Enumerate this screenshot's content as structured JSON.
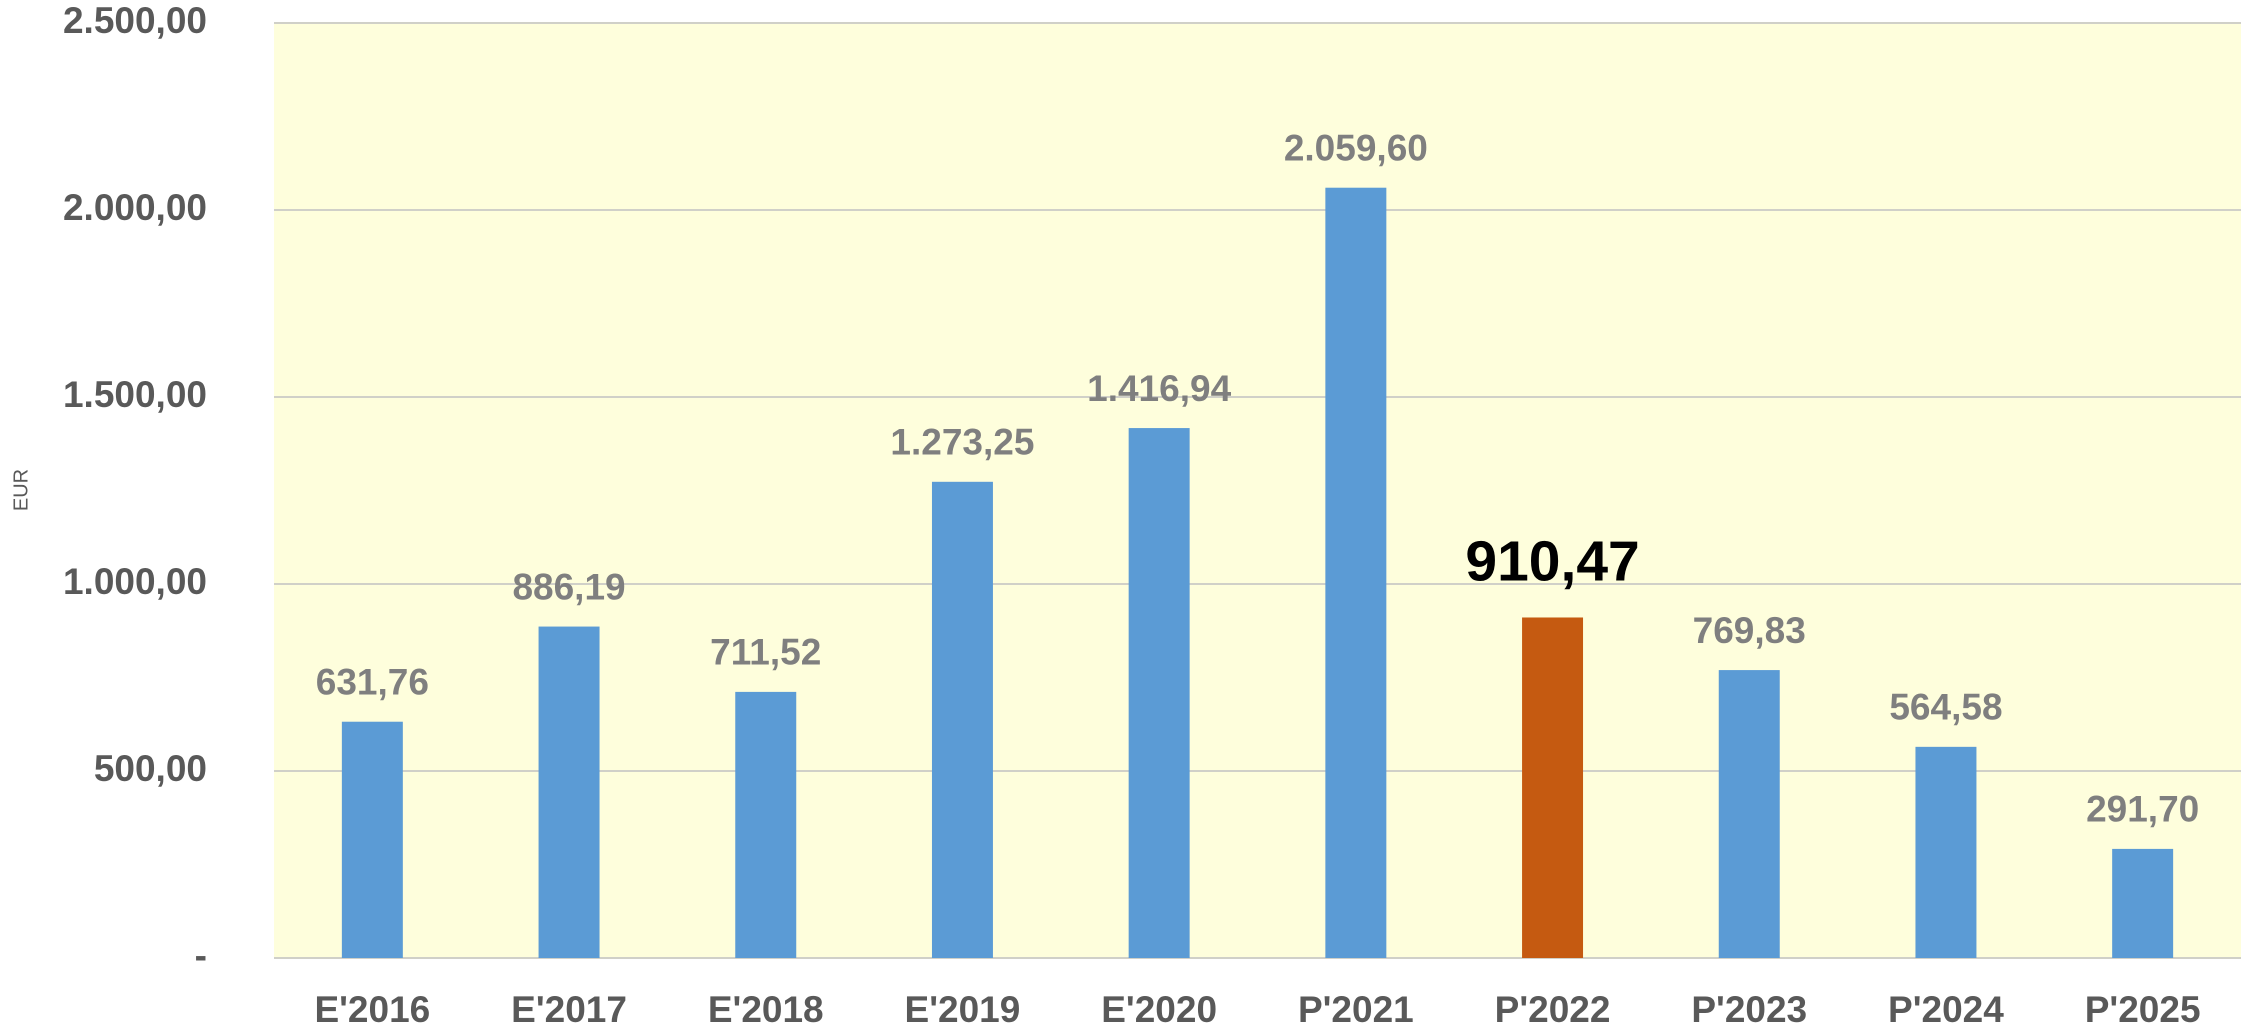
{
  "chart_data": {
    "type": "bar",
    "y_label": "EUR",
    "categories": [
      "E'2016",
      "E'2017",
      "E'2018",
      "E'2019",
      "E'2020",
      "P'2021",
      "P'2022",
      "P'2023",
      "P'2024",
      "P'2025"
    ],
    "values": [
      631.76,
      886.19,
      711.52,
      1273.25,
      1416.94,
      2059.6,
      910.47,
      769.83,
      564.58,
      291.7
    ],
    "value_labels": [
      "631,76",
      "886,19",
      "711,52",
      "1.273,25",
      "1.416,94",
      "2.059,60",
      "910,47",
      "769,83",
      "564,58",
      "291,70"
    ],
    "colors": [
      "#5b9bd5",
      "#5b9bd5",
      "#5b9bd5",
      "#5b9bd5",
      "#5b9bd5",
      "#5b9bd5",
      "#c55a11",
      "#5b9bd5",
      "#5b9bd5",
      "#5b9bd5"
    ],
    "label_colors": [
      "#7f7f7f",
      "#7f7f7f",
      "#7f7f7f",
      "#7f7f7f",
      "#7f7f7f",
      "#7f7f7f",
      "#000000",
      "#7f7f7f",
      "#7f7f7f",
      "#7f7f7f"
    ],
    "plot_background": "#fefedc",
    "ylim": [
      0,
      2500
    ],
    "yticks": [
      {
        "value": 0,
        "label": "-"
      },
      {
        "value": 500,
        "label": "500,00"
      },
      {
        "value": 1000,
        "label": "1.000,00"
      },
      {
        "value": 1500,
        "label": "1.500,00"
      },
      {
        "value": 2000,
        "label": "2.000,00"
      },
      {
        "value": 2500,
        "label": "2.500,00"
      }
    ],
    "grid": true
  }
}
